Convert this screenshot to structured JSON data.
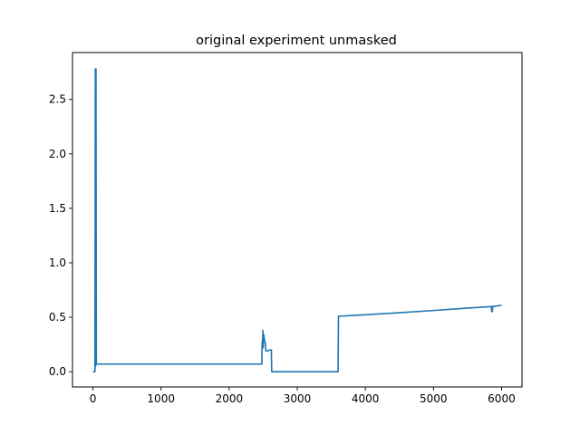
{
  "chart_data": {
    "type": "line",
    "title": "original experiment unmasked",
    "xlabel": "",
    "ylabel": "",
    "xlim": [
      -300,
      6300
    ],
    "ylim": [
      -0.14,
      2.93
    ],
    "grid": false,
    "legend": "none",
    "line_color": "#1f77b4",
    "x_ticks": [
      {
        "value": 0,
        "label": "0"
      },
      {
        "value": 1000,
        "label": "1000"
      },
      {
        "value": 2000,
        "label": "2000"
      },
      {
        "value": 3000,
        "label": "3000"
      },
      {
        "value": 4000,
        "label": "4000"
      },
      {
        "value": 5000,
        "label": "5000"
      },
      {
        "value": 6000,
        "label": "6000"
      }
    ],
    "y_ticks": [
      {
        "value": 0.0,
        "label": "0.0"
      },
      {
        "value": 0.5,
        "label": "0.5"
      },
      {
        "value": 1.0,
        "label": "1.0"
      },
      {
        "value": 1.5,
        "label": "1.5"
      },
      {
        "value": 2.0,
        "label": "2.0"
      },
      {
        "value": 2.5,
        "label": "2.5"
      }
    ],
    "series": [
      {
        "x": [
          0,
          30,
          35,
          40,
          45,
          50,
          55,
          60,
          2480,
          2485,
          2490,
          2495,
          2500,
          2510,
          2520,
          2530,
          2540,
          2560,
          2600,
          2620,
          2625,
          3600,
          3605,
          3700,
          4000,
          4500,
          5000,
          5500,
          5850,
          5855,
          5860,
          5865,
          5870,
          5900,
          6000
        ],
        "y": [
          0.0,
          0.0,
          2.78,
          0.05,
          2.78,
          0.07,
          0.07,
          0.07,
          0.07,
          0.28,
          0.24,
          0.38,
          0.22,
          0.34,
          0.28,
          0.27,
          0.19,
          0.19,
          0.2,
          0.2,
          0.0,
          0.0,
          0.51,
          0.512,
          0.523,
          0.542,
          0.562,
          0.584,
          0.598,
          0.55,
          0.6,
          0.555,
          0.6,
          0.6,
          0.61
        ]
      }
    ]
  }
}
